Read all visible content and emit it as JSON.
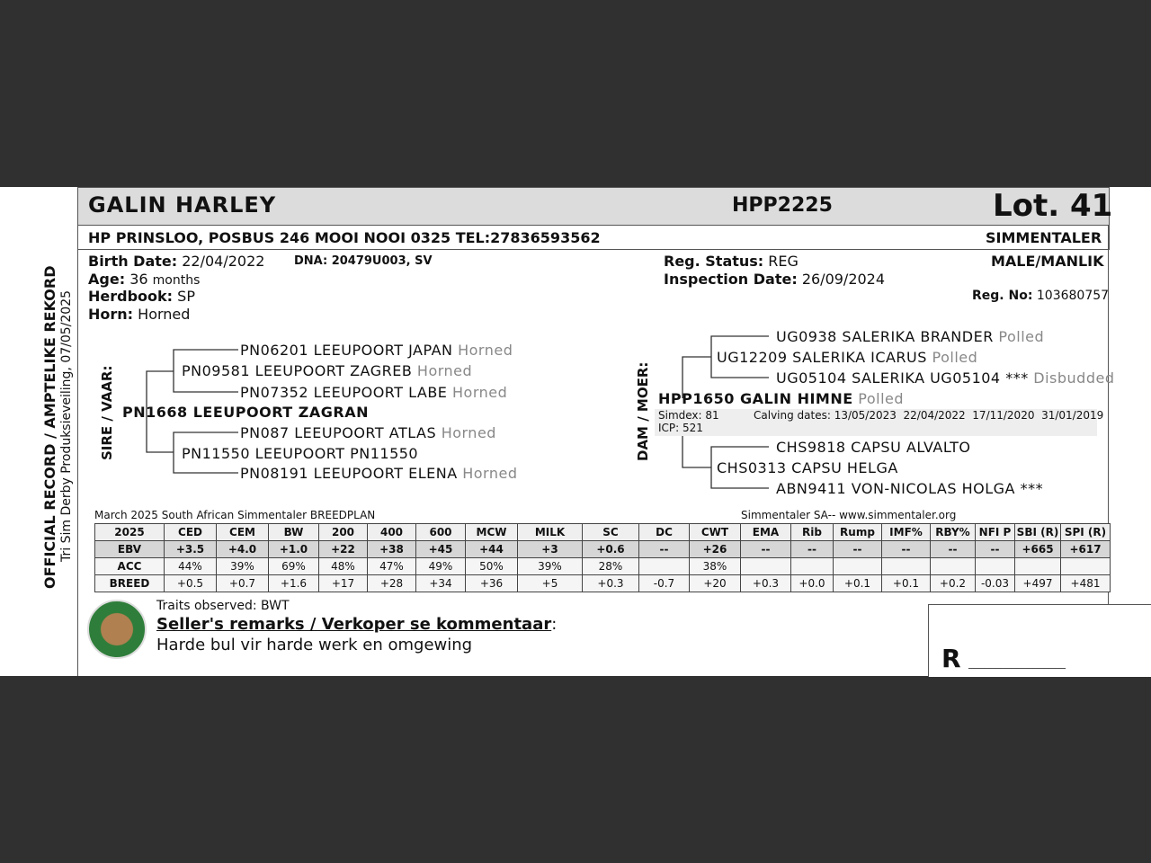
{
  "header": {
    "name": "GALIN HARLEY",
    "code": "HPP2225",
    "lot": "Lot. 41"
  },
  "owner": {
    "line": "HP PRINSLOO, POSBUS 246 MOOI NOOI 0325 TEL:27836593562",
    "breed": "SIMMENTALER"
  },
  "details": {
    "birth_label": "Birth Date:",
    "birth": "22/04/2022",
    "dna": "DNA: 20479U003, SV",
    "age_label": "Age:",
    "age": "36",
    "age_unit": "months",
    "herdbook_label": "Herdbook:",
    "herdbook": "SP",
    "horn_label": "Horn:",
    "horn": "Horned",
    "reg_status_label": "Reg. Status:",
    "reg_status": "REG",
    "inspection_label": "Inspection Date:",
    "inspection": "26/09/2024",
    "sex": "MALE/MANLIK",
    "reg_no_label": "Reg. No:",
    "reg_no": "103680757"
  },
  "side": {
    "official": "OFFICIAL RECORD / AMPTELIKE REKORD",
    "sale": "Tri Sim Derby Produksieveiling, 07/05/2025"
  },
  "sire": {
    "label": "SIRE / VAAR:",
    "name": "PN1668 LEEUPOORT ZAGRAN",
    "s": "PN09581 LEEUPOORT ZAGREB",
    "s_horn": "Horned",
    "ss": "PN06201 LEEUPOORT JAPAN",
    "ss_horn": "Horned",
    "sd": "PN07352 LEEUPOORT LABE",
    "sd_horn": "Horned",
    "d": "PN11550 LEEUPOORT PN11550",
    "ds": "PN087 LEEUPOORT ATLAS",
    "ds_horn": "Horned",
    "dd": "PN08191 LEEUPOORT ELENA",
    "dd_horn": "Horned"
  },
  "dam": {
    "label": "DAM / MOER:",
    "name": "HPP1650 GALIN HIMNE",
    "horn": "Polled",
    "simdex": "Simdex: 81",
    "icp": "ICP: 521",
    "calving": "Calving dates: 13/05/2023  22/04/2022  17/11/2020  31/01/2019",
    "s": "UG12209 SALERIKA ICARUS",
    "s_horn": "Polled",
    "ss": "UG0938 SALERIKA BRANDER",
    "ss_horn": "Polled",
    "sd": "UG05104 SALERIKA UG05104 ***",
    "sd_horn": "Disbudded",
    "d": "CHS0313 CAPSU HELGA",
    "ds": "CHS9818 CAPSU ALVALTO",
    "dd": "ABN9411 VON-NICOLAS HOLGA ***"
  },
  "ebv": {
    "caption_left": "March 2025 South African Simmentaler BREEDPLAN",
    "caption_right": "Simmentaler SA-- www.simmentaler.org",
    "headers": [
      "2025",
      "CED",
      "CEM",
      "BW",
      "200",
      "400",
      "600",
      "MCW",
      "MILK",
      "SC",
      "DC",
      "CWT",
      "EMA",
      "Rib",
      "Rump",
      "IMF%",
      "RBY%",
      "NFI P",
      "SBI (R)",
      "SPI (R)"
    ],
    "rows": [
      [
        "EBV",
        "+3.5",
        "+4.0",
        "+1.0",
        "+22",
        "+38",
        "+45",
        "+44",
        "+3",
        "+0.6",
        "--",
        "+26",
        "--",
        "--",
        "--",
        "--",
        "--",
        "--",
        "+665",
        "+617"
      ],
      [
        "ACC",
        "44%",
        "39%",
        "69%",
        "48%",
        "47%",
        "49%",
        "50%",
        "39%",
        "28%",
        "",
        "38%",
        "",
        "",
        "",
        "",
        "",
        "",
        "",
        ""
      ],
      [
        "BREED",
        "+0.5",
        "+0.7",
        "+1.6",
        "+17",
        "+28",
        "+34",
        "+36",
        "+5",
        "+0.3",
        "-0.7",
        "+20",
        "+0.3",
        "+0.0",
        "+0.1",
        "+0.1",
        "+0.2",
        "-0.03",
        "+497",
        "+481"
      ]
    ]
  },
  "footer": {
    "traits": "Traits observed: BWT",
    "remarks_title": "Seller's remarks / Verkoper se kommentaar",
    "remarks_colon": ":",
    "remarks": "Harde bul vir harde werk en omgewing",
    "price_label": "R",
    "price_line": "__________________"
  },
  "colors": {
    "header_bg": "#dcdcdc",
    "ebv_bg": "#d6d6d6",
    "background": "#303030"
  }
}
